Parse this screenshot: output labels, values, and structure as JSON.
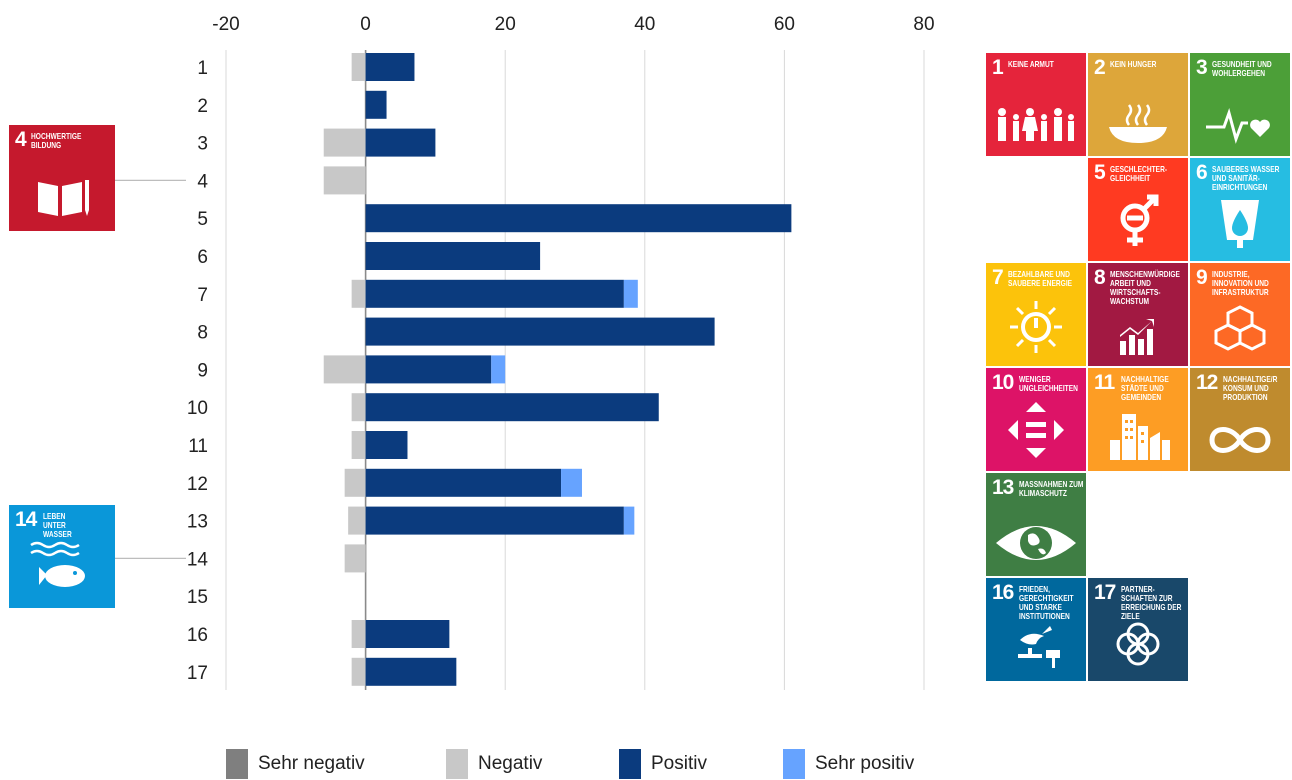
{
  "chart_data": {
    "type": "bar",
    "orientation": "horizontal",
    "stacked": true,
    "title": "",
    "xlabel": "",
    "ylabel": "",
    "xlim": [
      -20,
      80
    ],
    "x_ticks": [
      "-20",
      "0",
      "20",
      "40",
      "60",
      "80"
    ],
    "x_tick_values": [
      -20,
      0,
      20,
      40,
      60,
      80
    ],
    "grid": "vertical",
    "legend_position": "bottom",
    "categories": [
      "1",
      "2",
      "3",
      "4",
      "5",
      "6",
      "7",
      "8",
      "9",
      "10",
      "11",
      "12",
      "13",
      "14",
      "15",
      "16",
      "17"
    ],
    "series": [
      {
        "name": "Sehr negativ",
        "color": "#7f7f7f",
        "values": [
          0,
          0,
          0,
          0,
          0,
          0,
          0,
          0,
          0,
          0,
          0,
          0,
          0,
          0,
          0,
          0,
          0
        ]
      },
      {
        "name": "Negativ",
        "color": "#c8c8c8",
        "values": [
          -2,
          0,
          -6,
          -6,
          0,
          0,
          -2,
          0,
          -6,
          -2,
          -2,
          -3,
          -2.5,
          -3,
          0,
          -2,
          -2
        ]
      },
      {
        "name": "Positiv",
        "color": "#0b3b7e",
        "values": [
          7,
          3,
          10,
          0,
          61,
          25,
          37,
          50,
          18,
          42,
          6,
          28,
          37,
          0,
          0,
          12,
          13
        ]
      },
      {
        "name": "Sehr positiv",
        "color": "#66a3ff",
        "values": [
          0,
          0,
          0,
          0,
          0,
          0,
          2,
          0,
          2,
          0,
          0,
          3,
          1.5,
          0,
          0,
          0,
          0
        ]
      }
    ]
  },
  "highlighted_goals": [
    {
      "row": "4",
      "number": "4",
      "label": "Hochwertige Bildung",
      "color": "#c5192d",
      "icon": "book-pencil-icon"
    },
    {
      "row": "14",
      "number": "14",
      "label": "Leben unter Wasser",
      "color": "#0a97d9",
      "icon": "fish-waves-icon"
    }
  ],
  "sdg_grid": [
    {
      "number": "1",
      "label": "Keine Armut",
      "color": "#e5243b",
      "icon": "family-icon"
    },
    {
      "number": "2",
      "label": "Kein Hunger",
      "color": "#dda63a",
      "icon": "bowl-icon"
    },
    {
      "number": "3",
      "label": "Gesundheit und Wohlergehen",
      "color": "#4c9f38",
      "icon": "heartbeat-icon"
    },
    {
      "number": "5",
      "label": "Geschlechter-Gleichheit",
      "color": "#ff3a21",
      "icon": "gender-icon"
    },
    {
      "number": "6",
      "label": "Sauberes Wasser und Sanitär-Einrichtungen",
      "color": "#26bde2",
      "icon": "water-drop-icon"
    },
    {
      "number": "7",
      "label": "Bezahlbare und saubere Energie",
      "color": "#fcc30b",
      "icon": "sun-power-icon"
    },
    {
      "number": "8",
      "label": "Menschenwürdige Arbeit und Wirtschafts-Wachstum",
      "color": "#a21942",
      "icon": "growth-chart-icon"
    },
    {
      "number": "9",
      "label": "Industrie, Innovation und Infrastruktur",
      "color": "#fd6925",
      "icon": "cubes-icon"
    },
    {
      "number": "10",
      "label": "Weniger Ungleichheiten",
      "color": "#dd1367",
      "icon": "equality-arrows-icon"
    },
    {
      "number": "11",
      "label": "Nachhaltige Städte und Gemeinden",
      "color": "#fd9d24",
      "icon": "city-icon"
    },
    {
      "number": "12",
      "label": "Nachhaltige/r Konsum und Produktion",
      "color": "#bf8b2e",
      "icon": "infinity-icon"
    },
    {
      "number": "13",
      "label": "Massnahmen zum Klimaschutz",
      "color": "#3f7e44",
      "icon": "eye-globe-icon"
    },
    {
      "number": "16",
      "label": "Frieden, Gerechtigkeit und starke Institutionen",
      "color": "#00689d",
      "icon": "dove-gavel-icon"
    },
    {
      "number": "17",
      "label": "Partner-schaften zur Erreichung der Ziele",
      "color": "#19486a",
      "icon": "rings-icon"
    }
  ]
}
